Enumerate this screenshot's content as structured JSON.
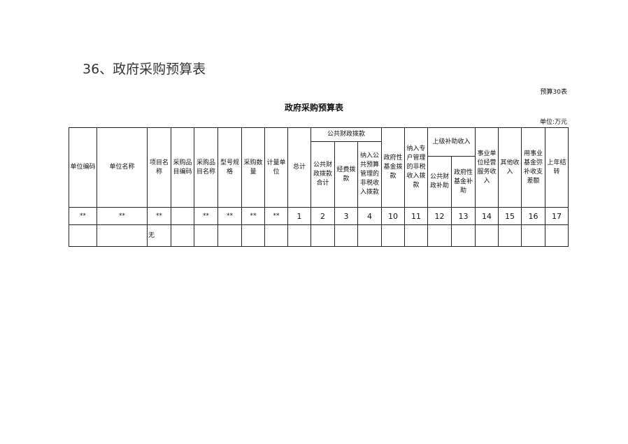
{
  "section_title": "36、政府采购预算表",
  "form_code": "预算30表",
  "table_title": "政府采购预算表",
  "unit": "单位:万元",
  "headers": {
    "c1": "单位编码",
    "c2": "单位名称",
    "c3": "项目名称",
    "c4": "采购品目编码",
    "c5": "采购品目名称",
    "c6": "型号规格",
    "c7": "采购数量",
    "c8": "计量单位",
    "c9": "总计",
    "g1": "公共财政拨款",
    "c10": "公共财政拨款合计",
    "c11": "经费拨款",
    "c12": "纳入公共预算管理的非税收入拨款",
    "c13": "政府性基金拨款",
    "c14": "纳入专户管理的非税收入拨款",
    "g2": "上级补助收入",
    "c15": "公共财政补助",
    "c16": "政府性基金补助",
    "c17": "事业单位经营服务收入",
    "c18": "其他收入",
    "c19": "用事业基金弥补收支差额",
    "c20": "上年结转"
  },
  "index_row": [
    "**",
    "**",
    "**",
    "",
    "**",
    "**",
    "**",
    "**",
    "1",
    "2",
    "3",
    "4",
    "10",
    "11",
    "12",
    "13",
    "14",
    "15",
    "16",
    "17"
  ],
  "data_rows": [
    [
      "",
      "",
      "无",
      "",
      "",
      "",
      "",
      "",
      "",
      "",
      "",
      "",
      "",
      "",
      "",
      "",
      "",
      "",
      "",
      ""
    ]
  ]
}
